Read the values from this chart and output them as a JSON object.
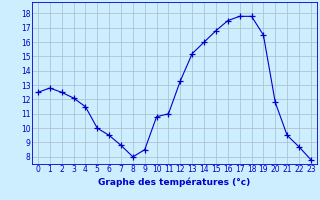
{
  "hours": [
    0,
    1,
    2,
    3,
    4,
    5,
    6,
    7,
    8,
    9,
    10,
    11,
    12,
    13,
    14,
    15,
    16,
    17,
    18,
    19,
    20,
    21,
    22,
    23
  ],
  "temps": [
    12.5,
    12.8,
    12.5,
    12.1,
    11.5,
    10.0,
    9.5,
    8.8,
    8.0,
    8.5,
    10.8,
    11.0,
    13.3,
    15.2,
    16.0,
    16.8,
    17.5,
    17.8,
    17.8,
    16.5,
    11.8,
    9.5,
    8.7,
    7.8
  ],
  "line_color": "#0000cc",
  "marker": "+",
  "marker_color": "#0000cc",
  "bg_color": "#cceeff",
  "grid_color": "#aabbcc",
  "xlabel": "Graphe des températures (°c)",
  "xlabel_color": "#0000cc",
  "ylabel_ticks": [
    8,
    9,
    10,
    11,
    12,
    13,
    14,
    15,
    16,
    17,
    18
  ],
  "ylim": [
    7.5,
    18.8
  ],
  "xlim": [
    -0.5,
    23.5
  ],
  "tick_color": "#0000cc",
  "axis_label_fontsize": 5.5,
  "xlabel_fontsize": 6.5,
  "marker_size": 4
}
